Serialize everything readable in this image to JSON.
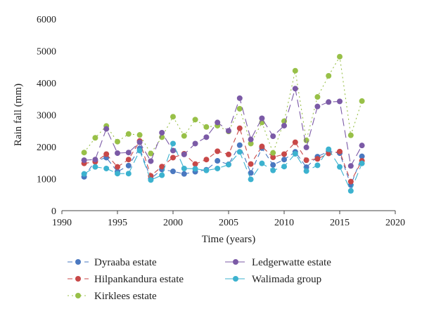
{
  "chart_data": {
    "type": "line",
    "xlabel": "Time (years)",
    "ylabel": "Rain fall (mm)",
    "xlim": [
      1990,
      2020
    ],
    "ylim": [
      0,
      6000
    ],
    "xticks": [
      1990,
      1995,
      2000,
      2005,
      2010,
      2015,
      2020
    ],
    "yticks": [
      0,
      1000,
      2000,
      3000,
      4000,
      5000,
      6000
    ],
    "grid": false,
    "legend_position": "bottom",
    "x": [
      1992,
      1993,
      1994,
      1995,
      1996,
      1997,
      1998,
      1999,
      2000,
      2001,
      2002,
      2003,
      2004,
      2005,
      2006,
      2007,
      2008,
      2009,
      2010,
      2011,
      2012,
      2013,
      2014,
      2015,
      2016,
      2017
    ],
    "series": [
      {
        "name": "Dyraaba estate",
        "color": "#4a78c0",
        "dash": "7,5",
        "values": [
          1060,
          1560,
          1660,
          1220,
          1410,
          1950,
          1000,
          1290,
          1230,
          1150,
          1220,
          1280,
          1560,
          1450,
          2050,
          1180,
          1960,
          1430,
          1600,
          1840,
          1360,
          1690,
          1860,
          1800,
          800,
          1700
        ]
      },
      {
        "name": "Hilpankandura estate",
        "color": "#c84848",
        "dash": "7,5",
        "values": [
          1480,
          1530,
          1770,
          1370,
          1600,
          2180,
          1090,
          1380,
          1660,
          1780,
          1460,
          1600,
          1860,
          1760,
          2580,
          1460,
          2010,
          1670,
          1770,
          2140,
          1580,
          1620,
          1790,
          1850,
          910,
          1560
        ]
      },
      {
        "name": "Kirklees estate",
        "color": "#98c048",
        "dash": "2,4",
        "values": [
          1820,
          2280,
          2650,
          2160,
          2400,
          2370,
          1790,
          2300,
          2940,
          2340,
          2850,
          2620,
          2660,
          2480,
          3190,
          2100,
          2760,
          1810,
          2800,
          4380,
          2200,
          3560,
          4220,
          4820,
          2360,
          3430
        ]
      },
      {
        "name": "Ledgerwatte estate",
        "color": "#7b5aa6",
        "dash": "11,6",
        "values": [
          1580,
          1600,
          2560,
          1800,
          1820,
          2140,
          1550,
          2440,
          1880,
          1760,
          2100,
          2300,
          2760,
          2500,
          3520,
          2230,
          2890,
          2330,
          2660,
          3820,
          1980,
          3260,
          3400,
          3420,
          1400,
          2040
        ]
      },
      {
        "name": "Walimada group",
        "color": "#3cb2cf",
        "dash": "11,6",
        "values": [
          1150,
          1370,
          1320,
          1160,
          1160,
          1880,
          960,
          1110,
          2100,
          1320,
          1310,
          1260,
          1320,
          1440,
          1840,
          980,
          1480,
          1260,
          1380,
          1780,
          1240,
          1420,
          1920,
          1370,
          620,
          1480
        ]
      }
    ]
  }
}
